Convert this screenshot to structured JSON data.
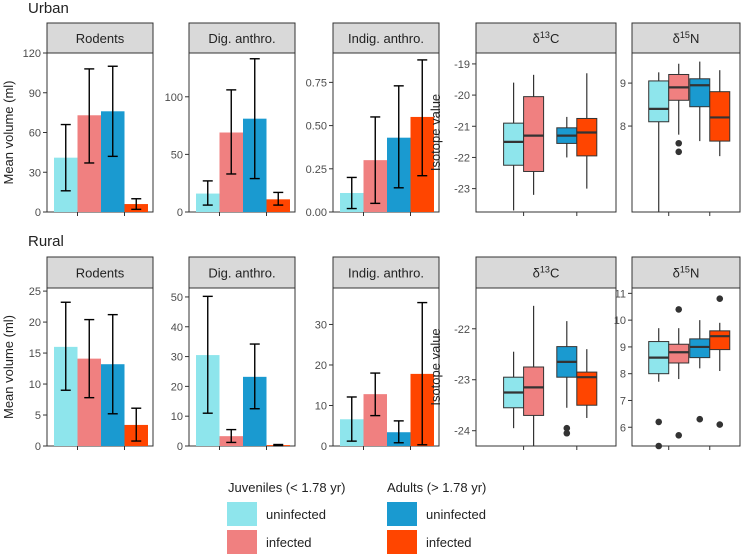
{
  "colors": {
    "juv_uninfected": "#8ee5ec",
    "juv_infected": "#f08080",
    "adult_uninfected": "#1a9ad0",
    "adult_infected": "#ff4500",
    "strip_bg": "#d9d9d9",
    "axis": "#333333",
    "text": "#222222"
  },
  "legend": {
    "juveniles_title": "Juveniles (< 1.78 yr)",
    "adults_title": "Adults (> 1.78 yr)",
    "uninfected": "uninfected",
    "infected": "infected"
  },
  "chart_data": [
    {
      "type": "bar",
      "section": "Urban",
      "title": "Rodents",
      "ylabel": "Mean volume (ml)",
      "ylim": [
        0,
        120
      ],
      "yticks": [
        0,
        30,
        60,
        90,
        120
      ],
      "yticklabels": [
        "0",
        "30",
        "60",
        "90",
        "120"
      ],
      "groups": [
        "juv_uninfected",
        "juv_infected",
        "adult_uninfected",
        "adult_infected"
      ],
      "values": [
        41,
        73,
        76,
        6
      ],
      "err_low": [
        16,
        37,
        42,
        2
      ],
      "err_high": [
        66,
        108,
        110,
        10
      ]
    },
    {
      "type": "bar",
      "section": "Urban",
      "title": "Dig. anthro.",
      "ylabel": "",
      "ylim": [
        0,
        138
      ],
      "yticks": [
        0,
        50,
        100
      ],
      "yticklabels": [
        "0",
        "50",
        "100"
      ],
      "groups": [
        "juv_uninfected",
        "juv_infected",
        "adult_uninfected",
        "adult_infected"
      ],
      "values": [
        16,
        69,
        81,
        11
      ],
      "err_low": [
        6,
        33,
        29,
        6
      ],
      "err_high": [
        27,
        106,
        133,
        17
      ]
    },
    {
      "type": "bar",
      "section": "Urban",
      "title": "Indig. anthro.",
      "ylabel": "",
      "ylim": [
        0,
        0.92
      ],
      "yticks": [
        0,
        0.25,
        0.5,
        0.75
      ],
      "yticklabels": [
        "0.00",
        "0.25",
        "0.50",
        "0.75"
      ],
      "groups": [
        "juv_uninfected",
        "juv_infected",
        "adult_uninfected",
        "adult_infected"
      ],
      "values": [
        0.11,
        0.3,
        0.43,
        0.55
      ],
      "err_low": [
        0.02,
        0.05,
        0.14,
        0.21
      ],
      "err_high": [
        0.2,
        0.55,
        0.73,
        0.88
      ]
    },
    {
      "type": "box",
      "section": "Urban",
      "title_base": "δ",
      "title_sup": "13",
      "title_tail": "C",
      "ylabel": "Isotope value",
      "ylim": [
        -23.75,
        -18.65
      ],
      "yticks": [
        -19,
        -20,
        -21,
        -22,
        -23
      ],
      "yticklabels": [
        "-19",
        "-20",
        "-21",
        "-22",
        "-23"
      ],
      "boxes": [
        {
          "group": "juv_uninfected",
          "min": -23.7,
          "q1": -22.25,
          "median": -21.5,
          "q3": -20.9,
          "max": -19.6,
          "outliers": []
        },
        {
          "group": "juv_infected",
          "min": -23.2,
          "q1": -22.45,
          "median": -21.3,
          "q3": -20.05,
          "max": -19.35,
          "outliers": []
        },
        {
          "group": "adult_uninfected",
          "min": -22.0,
          "q1": -21.55,
          "median": -21.3,
          "q3": -21.05,
          "max": -20.7,
          "outliers": []
        },
        {
          "group": "adult_infected",
          "min": -23.0,
          "q1": -21.95,
          "median": -21.2,
          "q3": -20.75,
          "max": -19.3,
          "outliers": []
        }
      ]
    },
    {
      "type": "box",
      "section": "Urban",
      "title_base": "δ",
      "title_sup": "15",
      "title_tail": "N",
      "ylabel": "",
      "ylim": [
        6.0,
        9.7
      ],
      "yticks": [
        8,
        9
      ],
      "yticklabels": [
        "8",
        "9"
      ],
      "boxes": [
        {
          "group": "juv_uninfected",
          "min": 6.0,
          "q1": 8.1,
          "median": 8.4,
          "q3": 9.05,
          "max": 9.25,
          "outliers": []
        },
        {
          "group": "juv_infected",
          "min": 7.8,
          "q1": 8.6,
          "median": 8.9,
          "q3": 9.2,
          "max": 9.45,
          "outliers": [
            7.6,
            7.4
          ]
        },
        {
          "group": "adult_uninfected",
          "min": 7.65,
          "q1": 8.45,
          "median": 8.95,
          "q3": 9.1,
          "max": 9.5,
          "outliers": []
        },
        {
          "group": "adult_infected",
          "min": 7.3,
          "q1": 7.65,
          "median": 8.2,
          "q3": 8.8,
          "max": 9.3,
          "outliers": []
        }
      ]
    },
    {
      "type": "bar",
      "section": "Rural",
      "title": "Rodents",
      "ylabel": "Mean volume (ml)",
      "ylim": [
        0,
        25.5
      ],
      "yticks": [
        0,
        5,
        10,
        15,
        20,
        25
      ],
      "yticklabels": [
        "0",
        "5",
        "10",
        "15",
        "20",
        "25"
      ],
      "groups": [
        "juv_uninfected",
        "juv_infected",
        "adult_uninfected",
        "adult_infected"
      ],
      "values": [
        16,
        14.1,
        13.2,
        3.4
      ],
      "err_low": [
        9,
        7.8,
        5.2,
        0.8
      ],
      "err_high": [
        23.2,
        20.4,
        21.2,
        6.1
      ]
    },
    {
      "type": "bar",
      "section": "Rural",
      "title": "Dig. anthro.",
      "ylabel": "",
      "ylim": [
        0,
        53
      ],
      "yticks": [
        0,
        10,
        20,
        30,
        40,
        50
      ],
      "yticklabels": [
        "0",
        "10",
        "20",
        "30",
        "40",
        "50"
      ],
      "groups": [
        "juv_uninfected",
        "juv_infected",
        "adult_uninfected",
        "adult_infected"
      ],
      "values": [
        30.5,
        3.3,
        23.2,
        0.3
      ],
      "err_low": [
        11,
        1.2,
        12.5,
        0.1
      ],
      "err_high": [
        50.2,
        5.5,
        34.2,
        0.5
      ]
    },
    {
      "type": "bar",
      "section": "Rural",
      "title": "Indig. anthro.",
      "ylabel": "",
      "ylim": [
        0,
        39
      ],
      "yticks": [
        0,
        10,
        20,
        30
      ],
      "yticklabels": [
        "0",
        "10",
        "20",
        "30"
      ],
      "groups": [
        "juv_uninfected",
        "juv_infected",
        "adult_uninfected",
        "adult_infected"
      ],
      "values": [
        6.6,
        12.8,
        3.4,
        17.8
      ],
      "err_low": [
        1.2,
        7.5,
        0.8,
        0.3
      ],
      "err_high": [
        12.1,
        18,
        6.2,
        35.4
      ]
    },
    {
      "type": "box",
      "section": "Rural",
      "title_base": "δ",
      "title_sup": "13",
      "title_tail": "C",
      "ylabel": "Isotope value",
      "ylim": [
        -24.3,
        -21.2
      ],
      "yticks": [
        -22,
        -23,
        -24
      ],
      "yticklabels": [
        "-22",
        "-23",
        "-24"
      ],
      "boxes": [
        {
          "group": "juv_uninfected",
          "min": -23.95,
          "q1": -23.55,
          "median": -23.25,
          "q3": -22.95,
          "max": -22.45,
          "outliers": []
        },
        {
          "group": "juv_infected",
          "min": -24.3,
          "q1": -23.7,
          "median": -23.15,
          "q3": -22.75,
          "max": -21.55,
          "outliers": []
        },
        {
          "group": "adult_uninfected",
          "min": -23.55,
          "q1": -22.95,
          "median": -22.65,
          "q3": -22.35,
          "max": -21.85,
          "outliers": [
            -23.95,
            -24.05
          ]
        },
        {
          "group": "adult_infected",
          "min": -23.75,
          "q1": -23.5,
          "median": -22.95,
          "q3": -22.85,
          "max": -22.4,
          "outliers": []
        }
      ]
    },
    {
      "type": "box",
      "section": "Rural",
      "title_base": "δ",
      "title_sup": "15",
      "title_tail": "N",
      "ylabel": "",
      "ylim": [
        5.3,
        11.2
      ],
      "yticks": [
        6,
        7,
        8,
        9,
        10,
        11
      ],
      "yticklabels": [
        "6",
        "7",
        "8",
        "9",
        "10",
        "11"
      ],
      "boxes": [
        {
          "group": "juv_uninfected",
          "min": 7.7,
          "q1": 8.0,
          "median": 8.6,
          "q3": 9.2,
          "max": 9.7,
          "outliers": [
            6.2,
            5.3
          ]
        },
        {
          "group": "juv_infected",
          "min": 7.8,
          "q1": 8.4,
          "median": 8.8,
          "q3": 9.1,
          "max": 9.7,
          "outliers": [
            10.4,
            5.7
          ]
        },
        {
          "group": "adult_uninfected",
          "min": 8.2,
          "q1": 8.6,
          "median": 9.0,
          "q3": 9.3,
          "max": 10.0,
          "outliers": [
            6.3
          ]
        },
        {
          "group": "adult_infected",
          "min": 8.1,
          "q1": 8.9,
          "median": 9.4,
          "q3": 9.6,
          "max": 9.9,
          "outliers": [
            10.8,
            6.1
          ]
        }
      ]
    }
  ],
  "sections": [
    "Urban",
    "Rural"
  ]
}
